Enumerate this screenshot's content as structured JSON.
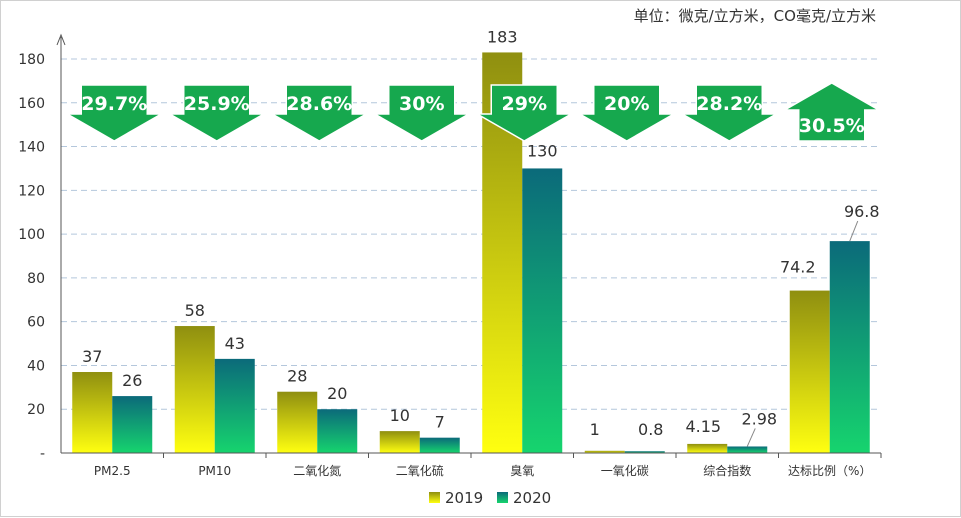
{
  "unit_label": "单位：微克/立方米，CO毫克/立方米",
  "colors": {
    "y2019_top": "#8f8f10",
    "y2019_bottom": "#ffff10",
    "y2020_top": "#0b6a7a",
    "y2020_bottom": "#16d46e",
    "arrow": "#16a84e",
    "grid": "#b4c7dc",
    "axis": "#555555"
  },
  "chart_data": {
    "type": "bar",
    "categories": [
      "PM2.5",
      "PM10",
      "二氧化氮",
      "二氧化硫",
      "臭氧",
      "一氧化碳",
      "综合指数",
      "达标比例（%）"
    ],
    "series": [
      {
        "name": "2019",
        "values": [
          37,
          58,
          28,
          10,
          183,
          1,
          4.15,
          74.2
        ],
        "labels": [
          "37",
          "58",
          "28",
          "10",
          "183",
          "1",
          "4.15",
          "74.2"
        ]
      },
      {
        "name": "2020",
        "values": [
          26,
          43,
          20,
          7,
          130,
          0.8,
          2.98,
          96.8
        ],
        "labels": [
          "26",
          "43",
          "20",
          "7",
          "130",
          "0.8",
          "2.98",
          "96.8"
        ]
      }
    ],
    "changes": [
      {
        "label": "29.7%",
        "direction": "down"
      },
      {
        "label": "25.9%",
        "direction": "down"
      },
      {
        "label": "28.6%",
        "direction": "down"
      },
      {
        "label": "30%",
        "direction": "down"
      },
      {
        "label": "29%",
        "direction": "down"
      },
      {
        "label": "20%",
        "direction": "down"
      },
      {
        "label": "28.2%",
        "direction": "down"
      },
      {
        "label": "30.5%",
        "direction": "up"
      }
    ],
    "ylim": [
      0,
      180
    ],
    "yticks": [
      0,
      20,
      40,
      60,
      80,
      100,
      120,
      140,
      160,
      180
    ],
    "ytick_labels": [
      "-",
      "20",
      "40",
      "60",
      "80",
      "100",
      "120",
      "140",
      "160",
      "180"
    ],
    "grid": true,
    "legend_position": "bottom"
  }
}
